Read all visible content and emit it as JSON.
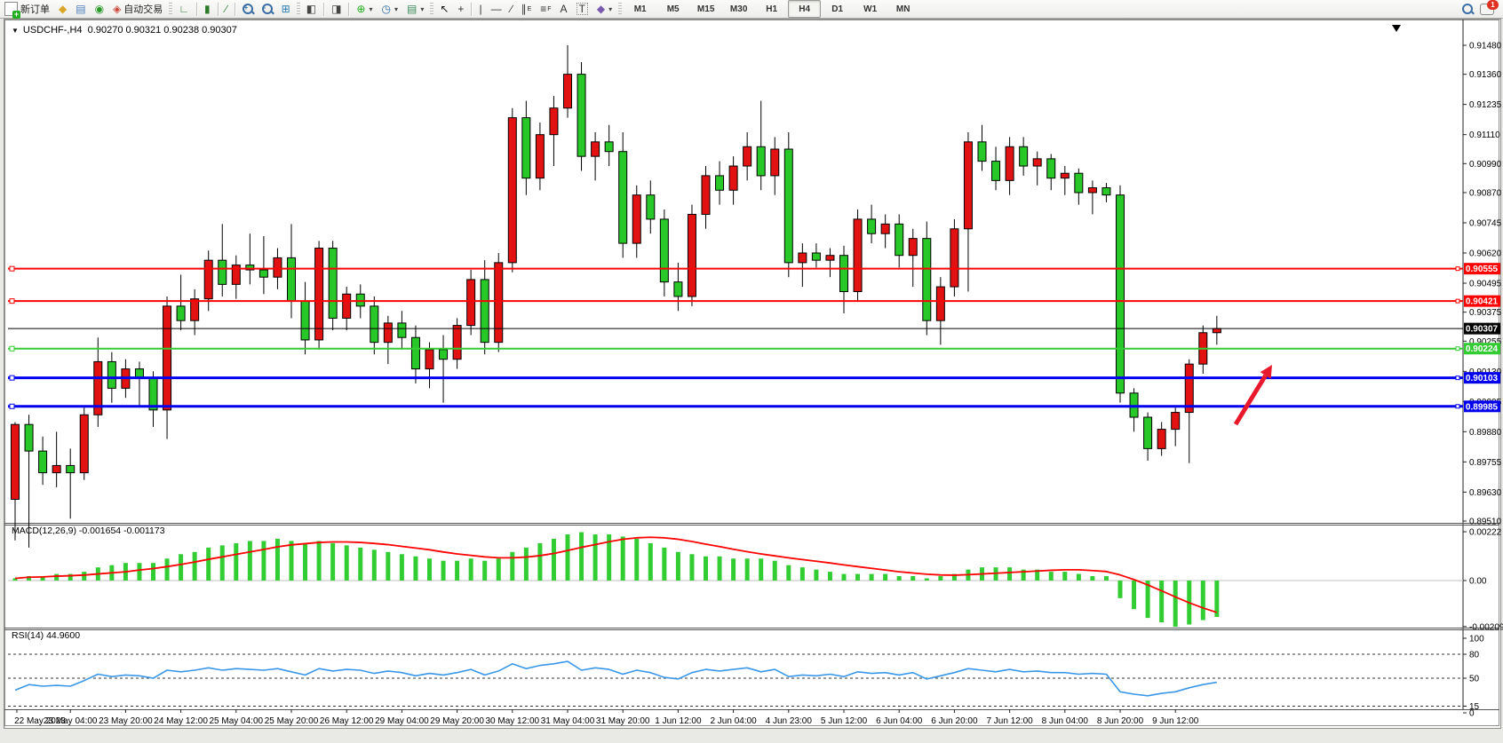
{
  "toolbar": {
    "items": [
      {
        "type": "btn",
        "name": "new-order-button",
        "icon": "doc-plus-icon",
        "label": "新订单"
      },
      {
        "type": "btn",
        "name": "metaquotes-button",
        "icon": "gold-diamond-icon",
        "glyph": "◆",
        "color": "#d8a62a"
      },
      {
        "type": "btn",
        "name": "market-watch-button",
        "icon": "window-user-icon",
        "glyph": "▤",
        "color": "#4a7ebb"
      },
      {
        "type": "btn",
        "name": "signals-button",
        "icon": "signal-icon",
        "glyph": "◉",
        "color": "#2a9a2a"
      },
      {
        "type": "btn",
        "name": "autotrading-button",
        "icon": "autotrading-icon",
        "glyph": "◈",
        "color": "#cc4434",
        "label": "自动交易"
      },
      {
        "type": "grip"
      },
      {
        "type": "btn",
        "name": "bar-chart-button",
        "icon": "bar-chart-icon",
        "glyph": "∟",
        "color": "#3a7a3a"
      },
      {
        "type": "sep"
      },
      {
        "type": "btn",
        "name": "candlestick-chart-button",
        "icon": "candlestick-icon",
        "glyph": "▮",
        "color": "#2a7a2a"
      },
      {
        "type": "sep"
      },
      {
        "type": "btn",
        "name": "line-chart-button",
        "icon": "line-chart-icon",
        "glyph": "∕",
        "color": "#3a7a3a"
      },
      {
        "type": "sep"
      },
      {
        "type": "btn",
        "name": "zoom-in-button",
        "icon": "zoom-in-icon",
        "lens": "+"
      },
      {
        "type": "btn",
        "name": "zoom-out-button",
        "icon": "zoom-out-icon",
        "lens": "-"
      },
      {
        "type": "btn",
        "name": "tile-windows-button",
        "icon": "tile-windows-icon",
        "glyph": "⊞",
        "color": "#2a7ab0"
      },
      {
        "type": "grip"
      },
      {
        "type": "btn",
        "name": "indicator-window-1-button",
        "icon": "chart-window-icon",
        "glyph": "◧",
        "color": "#444"
      },
      {
        "type": "sep"
      },
      {
        "type": "btn",
        "name": "indicator-window-2-button",
        "icon": "chart-window-arrow-icon",
        "glyph": "◨",
        "color": "#444"
      },
      {
        "type": "sep"
      },
      {
        "type": "btn",
        "name": "add-indicator-button",
        "icon": "add-indicator-icon",
        "glyph": "⊕",
        "color": "#1fae1f",
        "dropdown": true
      },
      {
        "type": "btn",
        "name": "periods-button",
        "icon": "clock-icon",
        "glyph": "◷",
        "color": "#2a6ab0",
        "dropdown": true
      },
      {
        "type": "btn",
        "name": "templates-button",
        "icon": "template-icon",
        "glyph": "▤",
        "color": "#3a8a5a",
        "dropdown": true
      },
      {
        "type": "grip"
      },
      {
        "type": "btn",
        "name": "cursor-button",
        "icon": "cursor-icon",
        "glyph": "↖",
        "color": "#111"
      },
      {
        "type": "btn",
        "name": "crosshair-button",
        "icon": "crosshair-icon",
        "glyph": "+",
        "color": "#333"
      },
      {
        "type": "sep"
      },
      {
        "type": "btn",
        "name": "vertical-line-button",
        "icon": "vertical-line-icon",
        "glyph": "|",
        "color": "#333"
      },
      {
        "type": "btn",
        "name": "horizontal-line-button",
        "icon": "horizontal-line-icon",
        "glyph": "—",
        "color": "#333"
      },
      {
        "type": "btn",
        "name": "trendline-button",
        "icon": "trendline-icon",
        "glyph": "∕",
        "color": "#333"
      },
      {
        "type": "btn",
        "name": "channel-button",
        "icon": "equidistant-channel-icon",
        "glyph": "∥",
        "sub": "E",
        "color": "#333"
      },
      {
        "type": "btn",
        "name": "fibonacci-button",
        "icon": "fibonacci-icon",
        "glyph": "≡",
        "sub": "F",
        "color": "#333"
      },
      {
        "type": "btn",
        "name": "text-button",
        "icon": "text-icon",
        "glyph": "A",
        "color": "#333"
      },
      {
        "type": "btn",
        "name": "text-label-button",
        "icon": "text-label-icon",
        "glyph": "T",
        "color": "#333",
        "boxed": true
      },
      {
        "type": "btn",
        "name": "arrows-button",
        "icon": "arrows-tool-icon",
        "glyph": "◆",
        "color": "#7a5ab0",
        "dropdown": true
      },
      {
        "type": "grip"
      }
    ],
    "timeframes": [
      "M1",
      "M5",
      "M15",
      "M30",
      "H1",
      "H4",
      "D1",
      "W1",
      "MN"
    ],
    "active_timeframe": "H4",
    "notification_count": "1"
  },
  "chart": {
    "title": "USDCHF-,H4",
    "quote": "0.90270 0.90321 0.90238 0.90307",
    "background": "#ffffff",
    "foreground": "#000000"
  },
  "hlines": [
    {
      "price": 0.90555,
      "label": "0.90555",
      "color": "#ff0000",
      "width": 2
    },
    {
      "price": 0.90421,
      "label": "0.90421",
      "color": "#ff0000",
      "width": 2
    },
    {
      "price": 0.90307,
      "label": "0.90307",
      "color": "#000000",
      "width": 1,
      "current": true
    },
    {
      "price": 0.90224,
      "label": "0.90224",
      "color": "#33cc33",
      "width": 2
    },
    {
      "price": 0.90103,
      "label": "0.90103",
      "color": "#0000ee",
      "width": 3
    },
    {
      "price": 0.89985,
      "label": "0.89985",
      "color": "#0000ee",
      "width": 3
    }
  ],
  "annotations": {
    "arrow": {
      "name": "buy-signal-arrow",
      "color": "#e8192c",
      "from": [
        1390,
        477
      ],
      "to": [
        1431,
        410
      ]
    }
  },
  "chart_data": {
    "type": "candlestick",
    "symbol": "USDCHF-",
    "timeframe": "H4",
    "bull_color": "#e31212",
    "bear_color": "#29c829",
    "wick_color": "#000000",
    "price_axis": {
      "min": 0.8951,
      "max": 0.9148,
      "ticks": [
        "0.91480",
        "0.91360",
        "0.91235",
        "0.91110",
        "0.90990",
        "0.90870",
        "0.90745",
        "0.90620",
        "0.90495",
        "0.90375",
        "0.90255",
        "0.90130",
        "0.90005",
        "0.89880",
        "0.89755",
        "0.89630",
        "0.89510"
      ]
    },
    "x_labels": [
      "22 May 2023",
      "23 May 04:00",
      "23 May 20:00",
      "24 May 12:00",
      "25 May 04:00",
      "25 May 20:00",
      "26 May 12:00",
      "29 May 04:00",
      "29 May 20:00",
      "30 May 12:00",
      "31 May 04:00",
      "31 May 20:00",
      "1 Jun 12:00",
      "2 Jun 04:00",
      "4 Jun 23:00",
      "5 Jun 12:00",
      "6 Jun 04:00",
      "6 Jun 20:00",
      "7 Jun 12:00",
      "8 Jun 04:00",
      "8 Jun 20:00",
      "9 Jun 12:00"
    ],
    "label_every_n_candles": 4,
    "candles": [
      [
        0.896,
        0.8992,
        0.8943,
        0.8991
      ],
      [
        0.8991,
        0.8995,
        0.894,
        0.898
      ],
      [
        0.898,
        0.8986,
        0.8966,
        0.8971
      ],
      [
        0.8971,
        0.8988,
        0.8965,
        0.8974
      ],
      [
        0.8974,
        0.8981,
        0.8952,
        0.8971
      ],
      [
        0.8971,
        0.8998,
        0.8968,
        0.8995
      ],
      [
        0.8995,
        0.9027,
        0.899,
        0.9017
      ],
      [
        0.9017,
        0.9021,
        0.9,
        0.9006
      ],
      [
        0.9006,
        0.9018,
        0.9002,
        0.9014
      ],
      [
        0.9014,
        0.9017,
        0.8998,
        0.901
      ],
      [
        0.901,
        0.9013,
        0.899,
        0.8997
      ],
      [
        0.8997,
        0.9044,
        0.8985,
        0.904
      ],
      [
        0.904,
        0.9053,
        0.903,
        0.9034
      ],
      [
        0.9034,
        0.9047,
        0.9028,
        0.9043
      ],
      [
        0.9043,
        0.9063,
        0.9038,
        0.9059
      ],
      [
        0.9059,
        0.9074,
        0.9044,
        0.9049
      ],
      [
        0.9049,
        0.9061,
        0.9043,
        0.9057
      ],
      [
        0.9057,
        0.907,
        0.9049,
        0.9055
      ],
      [
        0.9055,
        0.9069,
        0.9045,
        0.9052
      ],
      [
        0.9052,
        0.9064,
        0.9047,
        0.906
      ],
      [
        0.906,
        0.9074,
        0.9035,
        0.9042
      ],
      [
        0.9042,
        0.905,
        0.902,
        0.9026
      ],
      [
        0.9026,
        0.9067,
        0.9022,
        0.9064
      ],
      [
        0.9064,
        0.9067,
        0.903,
        0.9035
      ],
      [
        0.9035,
        0.9048,
        0.903,
        0.9045
      ],
      [
        0.9045,
        0.9049,
        0.9035,
        0.904
      ],
      [
        0.904,
        0.9044,
        0.902,
        0.9025
      ],
      [
        0.9025,
        0.9036,
        0.9016,
        0.9033
      ],
      [
        0.9033,
        0.9038,
        0.9022,
        0.9027
      ],
      [
        0.9027,
        0.9032,
        0.9008,
        0.9014
      ],
      [
        0.9014,
        0.9025,
        0.9006,
        0.9022
      ],
      [
        0.9022,
        0.9028,
        0.9,
        0.9018
      ],
      [
        0.9018,
        0.9035,
        0.9014,
        0.9032
      ],
      [
        0.9032,
        0.9055,
        0.9028,
        0.9051
      ],
      [
        0.9051,
        0.9059,
        0.902,
        0.9025
      ],
      [
        0.9025,
        0.9062,
        0.9021,
        0.9058
      ],
      [
        0.9058,
        0.9122,
        0.9054,
        0.9118
      ],
      [
        0.9118,
        0.9125,
        0.9086,
        0.9093
      ],
      [
        0.9093,
        0.9116,
        0.9088,
        0.9111
      ],
      [
        0.9111,
        0.9127,
        0.9098,
        0.9122
      ],
      [
        0.9122,
        0.9148,
        0.9118,
        0.9136
      ],
      [
        0.9136,
        0.9141,
        0.9096,
        0.9102
      ],
      [
        0.9102,
        0.9112,
        0.9092,
        0.9108
      ],
      [
        0.9108,
        0.9115,
        0.9098,
        0.9104
      ],
      [
        0.9104,
        0.9112,
        0.906,
        0.9066
      ],
      [
        0.9066,
        0.909,
        0.906,
        0.9086
      ],
      [
        0.9086,
        0.9092,
        0.907,
        0.9076
      ],
      [
        0.9076,
        0.908,
        0.9044,
        0.905
      ],
      [
        0.905,
        0.9058,
        0.9038,
        0.9044
      ],
      [
        0.9044,
        0.9082,
        0.904,
        0.9078
      ],
      [
        0.9078,
        0.9098,
        0.9072,
        0.9094
      ],
      [
        0.9094,
        0.91,
        0.9082,
        0.9088
      ],
      [
        0.9088,
        0.9102,
        0.9082,
        0.9098
      ],
      [
        0.9098,
        0.9112,
        0.9092,
        0.9106
      ],
      [
        0.9106,
        0.9125,
        0.9088,
        0.9094
      ],
      [
        0.9094,
        0.911,
        0.9086,
        0.9105
      ],
      [
        0.9105,
        0.9112,
        0.9052,
        0.9058
      ],
      [
        0.9058,
        0.9066,
        0.9048,
        0.9062
      ],
      [
        0.9062,
        0.9066,
        0.9056,
        0.9059
      ],
      [
        0.9059,
        0.9064,
        0.9052,
        0.9061
      ],
      [
        0.9061,
        0.9065,
        0.9037,
        0.9046
      ],
      [
        0.9046,
        0.908,
        0.9042,
        0.9076
      ],
      [
        0.9076,
        0.9082,
        0.9066,
        0.907
      ],
      [
        0.907,
        0.9078,
        0.9064,
        0.9074
      ],
      [
        0.9074,
        0.9078,
        0.9056,
        0.9061
      ],
      [
        0.9061,
        0.9072,
        0.9048,
        0.9068
      ],
      [
        0.9068,
        0.9075,
        0.9028,
        0.9034
      ],
      [
        0.9034,
        0.9052,
        0.9024,
        0.9048
      ],
      [
        0.9048,
        0.9076,
        0.9044,
        0.9072
      ],
      [
        0.9072,
        0.9112,
        0.9046,
        0.9108
      ],
      [
        0.9108,
        0.9115,
        0.9096,
        0.91
      ],
      [
        0.91,
        0.9106,
        0.9088,
        0.9092
      ],
      [
        0.9092,
        0.911,
        0.9086,
        0.9106
      ],
      [
        0.9106,
        0.911,
        0.9094,
        0.9098
      ],
      [
        0.9098,
        0.9104,
        0.909,
        0.9101
      ],
      [
        0.9101,
        0.9103,
        0.9088,
        0.9093
      ],
      [
        0.9093,
        0.9098,
        0.9086,
        0.9095
      ],
      [
        0.9095,
        0.9097,
        0.9082,
        0.9087
      ],
      [
        0.9087,
        0.9092,
        0.9078,
        0.9089
      ],
      [
        0.9089,
        0.9091,
        0.9083,
        0.9086
      ],
      [
        0.9086,
        0.909,
        0.9,
        0.9004
      ],
      [
        0.9004,
        0.9006,
        0.8988,
        0.8994
      ],
      [
        0.8994,
        0.8996,
        0.8976,
        0.8981
      ],
      [
        0.8981,
        0.8992,
        0.8978,
        0.8989
      ],
      [
        0.8989,
        0.8998,
        0.8982,
        0.8996
      ],
      [
        0.8996,
        0.9018,
        0.8975,
        0.9016
      ],
      [
        0.9016,
        0.9032,
        0.9012,
        0.9029
      ],
      [
        0.9029,
        0.9036,
        0.9024,
        0.90307
      ]
    ],
    "indicators": {
      "macd": {
        "label": "MACD(12,26,9) -0.001654 -0.001173",
        "main_value": -0.001654,
        "signal_value": -0.001173,
        "signal_period": 9,
        "histogram_color": "#32cd32",
        "signal_color": "#ff0000",
        "scale_ticks": [
          {
            "v": 0.00222,
            "t": "0.00222"
          },
          {
            "v": 0,
            "t": "0.00"
          },
          {
            "v": -0.00209,
            "t": "-0.00209"
          }
        ],
        "histogram": [
          0.0001,
          0.0002,
          0.0002,
          0.0003,
          0.0003,
          0.0004,
          0.0006,
          0.0007,
          0.0008,
          0.0008,
          0.0008,
          0.001,
          0.0012,
          0.0013,
          0.0015,
          0.0016,
          0.0017,
          0.0018,
          0.0018,
          0.0019,
          0.0018,
          0.0017,
          0.0018,
          0.0017,
          0.0016,
          0.0015,
          0.0014,
          0.0013,
          0.0012,
          0.0011,
          0.001,
          0.0009,
          0.0009,
          0.001,
          0.0009,
          0.001,
          0.0013,
          0.0015,
          0.0017,
          0.0019,
          0.0021,
          0.0022,
          0.0021,
          0.0021,
          0.002,
          0.0019,
          0.0017,
          0.0015,
          0.0013,
          0.0012,
          0.0011,
          0.0011,
          0.001,
          0.001,
          0.001,
          0.0009,
          0.0007,
          0.0006,
          0.0005,
          0.0004,
          0.0003,
          0.0003,
          0.0003,
          0.0003,
          0.0002,
          0.0002,
          0.0001,
          0.0002,
          0.0003,
          0.0005,
          0.0006,
          0.0006,
          0.0006,
          0.0005,
          0.0005,
          0.0004,
          0.0004,
          0.0003,
          0.0002,
          0.0002,
          -0.0008,
          -0.0013,
          -0.0017,
          -0.0019,
          -0.0021,
          -0.002,
          -0.0018,
          -0.001654
        ]
      },
      "rsi": {
        "label": "RSI(14) 44.9600",
        "current_value": 44.96,
        "line_color": "#3a97e8",
        "levels": [
          80,
          50,
          15
        ],
        "scale_labels": [
          {
            "v": 100,
            "t": "100"
          },
          {
            "v": 80,
            "t": "80"
          },
          {
            "v": 50,
            "t": "50"
          },
          {
            "v": 15,
            "t": "15"
          },
          {
            "v": 0,
            "t": "0"
          }
        ],
        "values": [
          35,
          42,
          40,
          41,
          40,
          47,
          55,
          52,
          54,
          53,
          50,
          60,
          58,
          60,
          63,
          60,
          62,
          61,
          60,
          62,
          58,
          54,
          62,
          59,
          61,
          60,
          56,
          59,
          57,
          53,
          56,
          54,
          57,
          61,
          54,
          59,
          68,
          62,
          66,
          68,
          71,
          60,
          63,
          61,
          55,
          60,
          57,
          51,
          49,
          57,
          61,
          59,
          61,
          63,
          58,
          61,
          52,
          54,
          53,
          55,
          52,
          58,
          56,
          57,
          54,
          57,
          49,
          53,
          57,
          62,
          60,
          58,
          61,
          58,
          59,
          57,
          57,
          55,
          56,
          55,
          33,
          30,
          28,
          31,
          33,
          38,
          42,
          44.96
        ]
      }
    }
  }
}
